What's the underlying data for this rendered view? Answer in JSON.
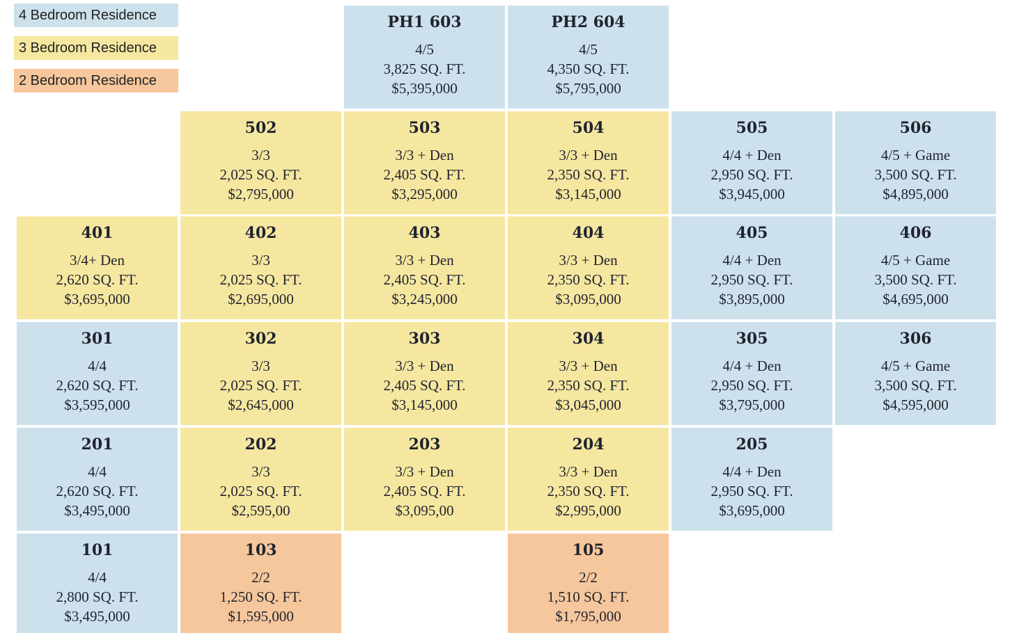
{
  "legend": [
    {
      "label": "4 Bedroom Residence",
      "color": "#cde1ec"
    },
    {
      "label": "3 Bedroom Residence",
      "color": "#f6e7a0"
    },
    {
      "label": "2 Bedroom Residence",
      "color": "#f6c79c"
    }
  ],
  "units": [
    {
      "number": "PH1 603",
      "config": "4/5",
      "area": "3,825 SQ. FT.",
      "price": "$5,395,000",
      "type": "4 Bedroom"
    },
    {
      "number": "PH2 604",
      "config": "4/5",
      "area": "4,350 SQ. FT.",
      "price": "$5,795,000",
      "type": "4 Bedroom"
    },
    {
      "number": "502",
      "config": "3/3",
      "area": "2,025 SQ. FT.",
      "price": "$2,795,000",
      "type": "3 Bedroom"
    },
    {
      "number": "503",
      "config": "3/3 + Den",
      "area": "2,405 SQ. FT.",
      "price": "$3,295,000",
      "type": "3 Bedroom"
    },
    {
      "number": "504",
      "config": "3/3 + Den",
      "area": "2,350 SQ. FT.",
      "price": "$3,145,000",
      "type": "3 Bedroom"
    },
    {
      "number": "505",
      "config": "4/4 + Den",
      "area": "2,950 SQ. FT.",
      "price": "$3,945,000",
      "type": "4 Bedroom"
    },
    {
      "number": "506",
      "config": "4/5 + Game",
      "area": "3,500 SQ. FT.",
      "price": "$4,895,000",
      "type": "4 Bedroom"
    },
    {
      "number": "401",
      "config": "3/4+ Den",
      "area": "2,620 SQ. FT.",
      "price": "$3,695,000",
      "type": "3 Bedroom"
    },
    {
      "number": "402",
      "config": "3/3",
      "area": "2,025 SQ. FT.",
      "price": "$2,695,000",
      "type": "3 Bedroom"
    },
    {
      "number": "403",
      "config": "3/3 + Den",
      "area": "2,405 SQ. FT.",
      "price": "$3,245,000",
      "type": "3 Bedroom"
    },
    {
      "number": "404",
      "config": "3/3 + Den",
      "area": "2,350 SQ. FT.",
      "price": "$3,095,000",
      "type": "3 Bedroom"
    },
    {
      "number": "405",
      "config": "4/4 + Den",
      "area": "2,950 SQ. FT.",
      "price": "$3,895,000",
      "type": "4 Bedroom"
    },
    {
      "number": "406",
      "config": "4/5 + Game",
      "area": "3,500 SQ. FT.",
      "price": "$4,695,000",
      "type": "4 Bedroom"
    },
    {
      "number": "301",
      "config": "4/4",
      "area": "2,620 SQ. FT.",
      "price": "$3,595,000",
      "type": "4 Bedroom"
    },
    {
      "number": "302",
      "config": "3/3",
      "area": "2,025 SQ. FT.",
      "price": "$2,645,000",
      "type": "3 Bedroom"
    },
    {
      "number": "303",
      "config": "3/3 + Den",
      "area": "2,405 SQ. FT.",
      "price": "$3,145,000",
      "type": "3 Bedroom"
    },
    {
      "number": "304",
      "config": "3/3 + Den",
      "area": "2,350 SQ. FT.",
      "price": "$3,045,000",
      "type": "3 Bedroom"
    },
    {
      "number": "305",
      "config": "4/4 + Den",
      "area": "2,950 SQ. FT.",
      "price": "$3,795,000",
      "type": "4 Bedroom"
    },
    {
      "number": "306",
      "config": "4/5 + Game",
      "area": "3,500 SQ. FT.",
      "price": "$4,595,000",
      "type": "4 Bedroom"
    },
    {
      "number": "201",
      "config": "4/4",
      "area": "2,620 SQ. FT.",
      "price": "$3,495,000",
      "type": "4 Bedroom"
    },
    {
      "number": "202",
      "config": "3/3",
      "area": "2,025 SQ. FT.",
      "price": "$2,595,00",
      "type": "3 Bedroom"
    },
    {
      "number": "203",
      "config": "3/3 + Den",
      "area": "2,405 SQ. FT.",
      "price": "$3,095,00",
      "type": "3 Bedroom"
    },
    {
      "number": "204",
      "config": "3/3 + Den",
      "area": "2,350 SQ. FT.",
      "price": "$2,995,000",
      "type": "3 Bedroom"
    },
    {
      "number": "205",
      "config": "4/4 + Den",
      "area": "2,950 SQ. FT.",
      "price": "$3,695,000",
      "type": "4 Bedroom"
    },
    {
      "number": "101",
      "config": "4/4",
      "area": "2,800 SQ. FT.",
      "price": "$3,495,000",
      "type": "4 Bedroom"
    },
    {
      "number": "103",
      "config": "2/2",
      "area": "1,250 SQ. FT.",
      "price": "$1,595,000",
      "type": "2 Bedroom"
    },
    {
      "number": "105",
      "config": "2/2",
      "area": "1,510 SQ. FT.",
      "price": "$1,795,000",
      "type": "2 Bedroom"
    }
  ]
}
